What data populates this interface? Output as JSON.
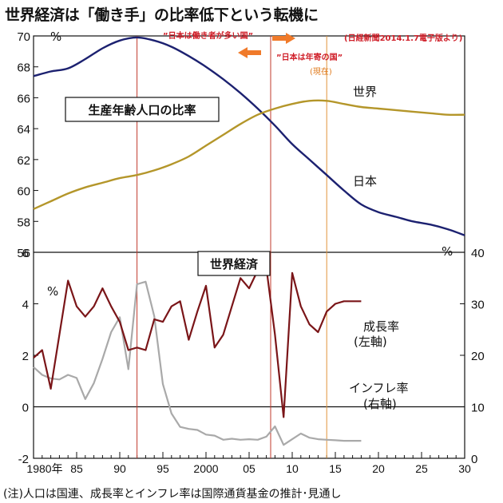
{
  "title": "世界経済は「働き手」の比率低下という転機に",
  "footnote": "(注)人口は国連、成長率とインフレ率は国際通貨基金の推計･見通し",
  "colors": {
    "japan": "#1c2170",
    "world": "#b4962a",
    "growth": "#7a1518",
    "inflation": "#a9a9a9",
    "marker_red": "#c0392b",
    "marker_orange": "#e0953a",
    "arrow": "#f07a2a"
  },
  "annotations": {
    "source": "(日経新聞2014.1.7電子版より)",
    "worker_era": "”日本は働き者が多い国”",
    "aged_era": "”日本は年寄の国”",
    "now": "(現在)",
    "top_box": "生産年齢人口の比率",
    "bottom_box": "世界経済"
  },
  "chart_data": [
    {
      "type": "line",
      "title": "生産年齢人口の比率",
      "ylabel": "%",
      "ylim": [
        56,
        70
      ],
      "yticks": [
        70,
        68,
        66,
        64,
        62,
        60,
        58,
        56
      ],
      "xlim": [
        1980,
        2030
      ],
      "series": [
        {
          "name": "日本",
          "color": "#1c2170",
          "x": [
            1980,
            1982,
            1984,
            1986,
            1988,
            1990,
            1992,
            1994,
            1996,
            1998,
            2000,
            2002,
            2004,
            2006,
            2008,
            2010,
            2012,
            2014,
            2016,
            2018,
            2020,
            2022,
            2024,
            2026,
            2028,
            2030
          ],
          "values": [
            67.4,
            67.7,
            67.9,
            68.5,
            69.2,
            69.7,
            69.9,
            69.7,
            69.3,
            68.7,
            68.0,
            67.2,
            66.3,
            65.3,
            64.2,
            63.0,
            62.0,
            61.0,
            60.0,
            59.1,
            58.6,
            58.3,
            58.0,
            57.8,
            57.5,
            57.1
          ]
        },
        {
          "name": "世界",
          "color": "#b4962a",
          "x": [
            1980,
            1982,
            1984,
            1986,
            1988,
            1990,
            1992,
            1994,
            1996,
            1998,
            2000,
            2002,
            2004,
            2006,
            2008,
            2010,
            2012,
            2014,
            2016,
            2018,
            2020,
            2022,
            2024,
            2026,
            2028,
            2030
          ],
          "values": [
            58.8,
            59.3,
            59.8,
            60.2,
            60.5,
            60.8,
            61.0,
            61.3,
            61.7,
            62.2,
            62.9,
            63.6,
            64.3,
            64.9,
            65.3,
            65.6,
            65.8,
            65.8,
            65.6,
            65.4,
            65.3,
            65.2,
            65.1,
            65.0,
            64.9,
            64.9
          ]
        }
      ]
    },
    {
      "type": "line",
      "title": "世界経済",
      "xlim": [
        1980,
        2030
      ],
      "xticks": [
        {
          "x": 1980,
          "label": "1980年"
        },
        {
          "x": 1985,
          "label": "85"
        },
        {
          "x": 1990,
          "label": "90"
        },
        {
          "x": 1995,
          "label": "95"
        },
        {
          "x": 2000,
          "label": "2000"
        },
        {
          "x": 2005,
          "label": "05"
        },
        {
          "x": 2010,
          "label": "10"
        },
        {
          "x": 2015,
          "label": "15"
        },
        {
          "x": 2020,
          "label": "20"
        },
        {
          "x": 2025,
          "label": "25"
        },
        {
          "x": 2030,
          "label": "30"
        }
      ],
      "y_left": {
        "label": "%",
        "lim": [
          -2,
          6
        ],
        "ticks": [
          6,
          4,
          2,
          0,
          -2
        ]
      },
      "y_right": {
        "label": "%",
        "lim": [
          0,
          40
        ],
        "ticks": [
          40,
          30,
          20,
          10,
          0
        ]
      },
      "series": [
        {
          "name": "成長率",
          "axis": "left",
          "legend": "(左軸)",
          "color": "#7a1518",
          "x": [
            1980,
            1981,
            1982,
            1983,
            1984,
            1985,
            1986,
            1987,
            1988,
            1989,
            1990,
            1991,
            1992,
            1993,
            1994,
            1995,
            1996,
            1997,
            1998,
            1999,
            2000,
            2001,
            2002,
            2003,
            2004,
            2005,
            2006,
            2007,
            2008,
            2009,
            2010,
            2011,
            2012,
            2013,
            2014,
            2015,
            2016,
            2017,
            2018
          ],
          "values": [
            1.9,
            2.2,
            0.7,
            2.8,
            4.9,
            3.9,
            3.5,
            3.9,
            4.6,
            3.9,
            3.3,
            2.2,
            2.3,
            2.2,
            3.4,
            3.3,
            3.9,
            4.1,
            2.6,
            3.7,
            4.7,
            2.3,
            2.8,
            3.9,
            5.0,
            4.6,
            5.3,
            5.4,
            2.8,
            -0.4,
            5.2,
            3.9,
            3.2,
            2.9,
            3.7,
            4.0,
            4.1,
            4.1,
            4.1
          ]
        },
        {
          "name": "インフレ率",
          "axis": "right",
          "legend": "(右軸)",
          "color": "#a9a9a9",
          "x": [
            1980,
            1981,
            1982,
            1983,
            1984,
            1985,
            1986,
            1987,
            1988,
            1989,
            1990,
            1991,
            1992,
            1993,
            1994,
            1995,
            1996,
            1997,
            1998,
            1999,
            2000,
            2001,
            2002,
            2003,
            2004,
            2005,
            2006,
            2007,
            2008,
            2009,
            2010,
            2011,
            2012,
            2013,
            2014,
            2015,
            2016,
            2017,
            2018
          ],
          "values": [
            17.7,
            16.2,
            15.5,
            15.3,
            16.2,
            15.6,
            11.5,
            14.6,
            19.3,
            24.5,
            27.4,
            17.3,
            33.8,
            34.3,
            27.6,
            14.4,
            8.7,
            6.1,
            5.7,
            5.5,
            4.6,
            4.4,
            3.6,
            3.8,
            3.6,
            3.7,
            3.6,
            4.2,
            6.2,
            2.6,
            3.7,
            4.8,
            4.0,
            3.7,
            3.6,
            3.5,
            3.4,
            3.4,
            3.4
          ]
        }
      ]
    }
  ],
  "markers": [
    {
      "x": 1992,
      "color": "#c0392b"
    },
    {
      "x": 2007.5,
      "color": "#c0392b"
    },
    {
      "x": 2014,
      "color": "#e0953a"
    }
  ]
}
